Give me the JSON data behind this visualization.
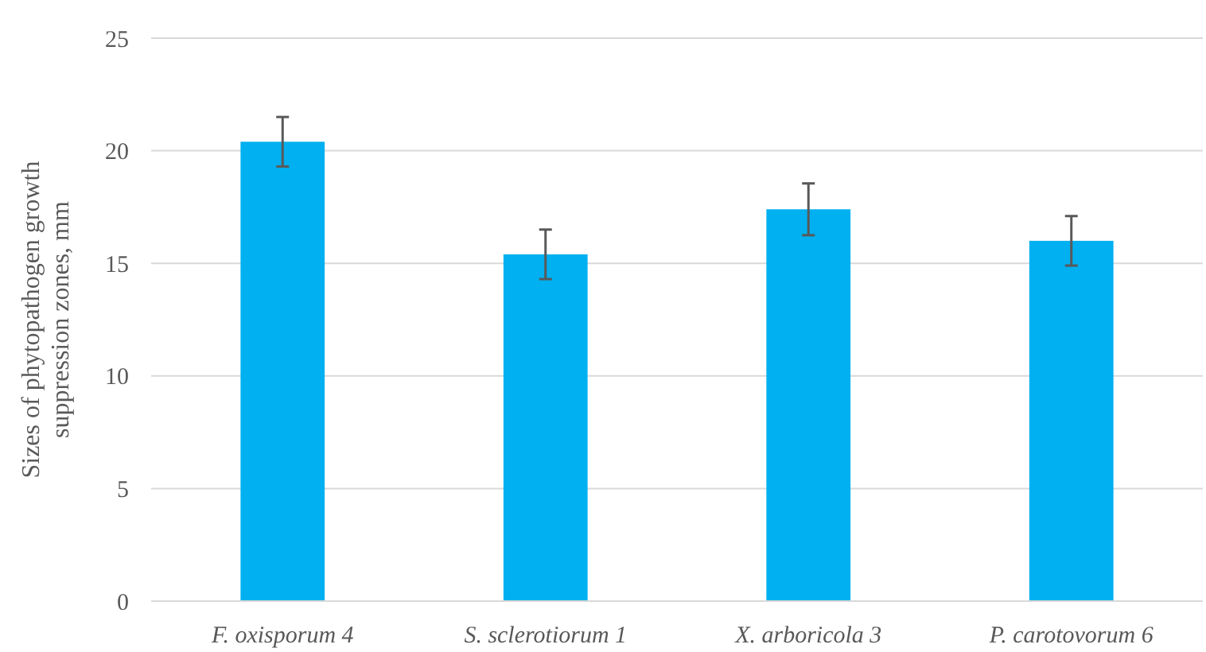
{
  "chart_data": {
    "type": "bar",
    "ylabel": "Sizes of phytopathogen growth suppression zones, mm",
    "categories": [
      "F. oxisporum 4",
      "S. sclerotiorum 1",
      "X. arboricola 3",
      "P. carotovorum 6"
    ],
    "values": [
      20.4,
      15.4,
      17.4,
      16.0
    ],
    "errors": [
      1.1,
      1.1,
      1.15,
      1.1
    ],
    "color": "#00b0f0",
    "ylim": [
      0,
      25
    ],
    "yticks": [
      0,
      5,
      10,
      15,
      20,
      25
    ],
    "grid": "y"
  }
}
